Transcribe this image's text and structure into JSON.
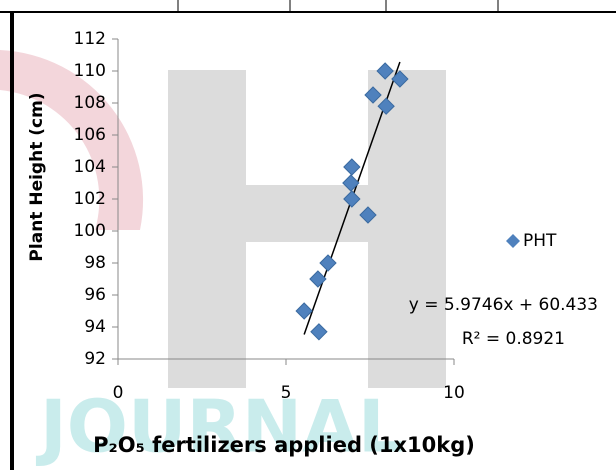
{
  "chart_data": {
    "type": "scatter",
    "x_label": "P₂O₅ fertilizers applied (1x10kg)",
    "y_label": "Plant Height (cm)",
    "watermark": "JOURNAL",
    "series": [
      {
        "name": "PHT",
        "color": "#4f81bd",
        "x": [
          5.54,
          5.98,
          5.95,
          6.25,
          6.93,
          6.96,
          6.96,
          7.44,
          7.59,
          7.95,
          7.98,
          8.39
        ],
        "values": [
          95,
          93.7,
          97,
          98,
          103,
          104,
          102,
          101,
          108.5,
          110,
          107.8,
          109.5
        ]
      }
    ],
    "trendline": {
      "slope": 5.9746,
      "intercept": 60.433,
      "equation": "y = 5.9746x + 60.433",
      "r_squared": "R² = 0.8921"
    },
    "xlim": [
      0,
      10
    ],
    "xticks": [
      0,
      5,
      10
    ],
    "ylim": [
      92,
      112
    ],
    "yticks": [
      92,
      94,
      96,
      98,
      100,
      102,
      104,
      106,
      108,
      110,
      112
    ],
    "legend": "right"
  }
}
